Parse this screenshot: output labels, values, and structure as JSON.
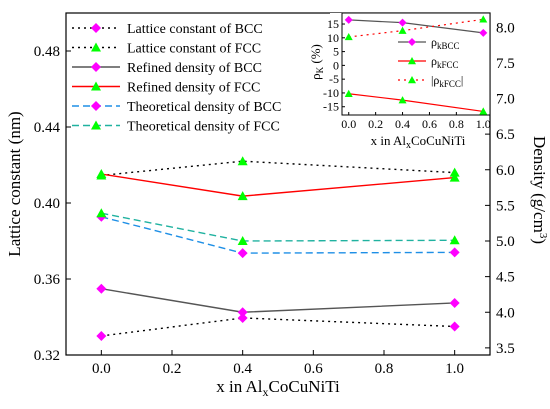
{
  "chart_data": [
    {
      "type": "line",
      "x": [
        0.0,
        0.4,
        1.0
      ],
      "xlim": [
        -0.1,
        1.1
      ],
      "xticks": [
        "0.0",
        "0.2",
        "0.4",
        "0.6",
        "0.8",
        "1.0"
      ],
      "xlabel": {
        "pre": "x in Al",
        "sub": "x",
        "post": "CoCuNiTi"
      },
      "ylabel": "Lattice constant (nm)",
      "ylim": [
        0.32,
        0.5
      ],
      "yticks": [
        "0.32",
        "0.36",
        "0.40",
        "0.44",
        "0.48"
      ],
      "y2label": {
        "pre": "Density (g/cm",
        "sup": "3",
        "post": ")"
      },
      "y2lim": [
        3.4,
        8.2
      ],
      "y2ticks": [
        "3.5",
        "4.0",
        "4.5",
        "5.0",
        "5.5",
        "6.0",
        "6.5",
        "7.0",
        "7.5",
        "8.0"
      ],
      "legend_position": "top-left",
      "series": [
        {
          "name": "Lattice constant of BCC",
          "axis": "left",
          "style": "dotted",
          "color": "#000000",
          "marker": "diamond",
          "marker_color": "#ff00ff",
          "values": [
            0.33,
            0.3395,
            0.335
          ]
        },
        {
          "name": "Lattice constant of FCC",
          "axis": "left",
          "style": "dotted",
          "color": "#000000",
          "marker": "triangle",
          "marker_color": "#00ff00",
          "values": [
            0.4145,
            0.422,
            0.416
          ]
        },
        {
          "name": "Refined density of BCC",
          "axis": "right",
          "style": "solid",
          "color": "#555555",
          "marker": "diamond",
          "marker_color": "#ff00ff",
          "values": [
            4.33,
            4.0,
            4.13
          ]
        },
        {
          "name": "Refined density of FCC",
          "axis": "right",
          "style": "solid",
          "color": "#ff0000",
          "marker": "triangle",
          "marker_color": "#00ff00",
          "values": [
            5.94,
            5.63,
            5.89
          ]
        },
        {
          "name": "Theoretical density of BCC",
          "axis": "right",
          "style": "dashed",
          "color": "#1e8fe6",
          "marker": "diamond",
          "marker_color": "#ff00ff",
          "values": [
            5.34,
            4.83,
            4.84
          ]
        },
        {
          "name": "Theoretical density of FCC",
          "axis": "right",
          "style": "dashed",
          "color": "#20b2a0",
          "marker": "triangle",
          "marker_color": "#00ff00",
          "values": [
            5.39,
            5.0,
            5.01
          ]
        }
      ]
    },
    {
      "type": "line",
      "inset": true,
      "x": [
        0.0,
        0.4,
        1.0
      ],
      "xlim": [
        -0.05,
        1.05
      ],
      "xticks": [
        "0.0",
        "0.2",
        "0.4",
        "0.6",
        "0.8",
        "1.0"
      ],
      "xlabel": {
        "pre": "x in Al",
        "sub": "x",
        "post": "CoCuNiTi"
      },
      "ylabel": {
        "pre": "ρ",
        "sub": "K",
        "post": " (%)"
      },
      "ylim": [
        -18,
        19
      ],
      "yticks": [
        "-15",
        "-10",
        "-5",
        "0",
        "5",
        "10",
        "15"
      ],
      "legend_position": "right",
      "series": [
        {
          "name": {
            "pre": "ρ",
            "sub": "kBCC",
            "post": ""
          },
          "style": "solid",
          "color": "#555555",
          "marker": "diamond",
          "marker_color": "#ff00ff",
          "values": [
            16.5,
            15.5,
            11.8
          ]
        },
        {
          "name": {
            "pre": "ρ",
            "sub": "kFCC",
            "post": ""
          },
          "style": "solid",
          "color": "#ff0000",
          "marker": "triangle",
          "marker_color": "#00ff00",
          "values": [
            -10.3,
            -12.6,
            -16.7
          ]
        },
        {
          "name": {
            "pre": "|ρ",
            "sub": "kFCC",
            "post": "|"
          },
          "style": "dotted",
          "color": "#ff0000",
          "marker": "triangle",
          "marker_color": "#00ff00",
          "values": [
            10.3,
            12.6,
            16.7
          ]
        }
      ]
    }
  ]
}
